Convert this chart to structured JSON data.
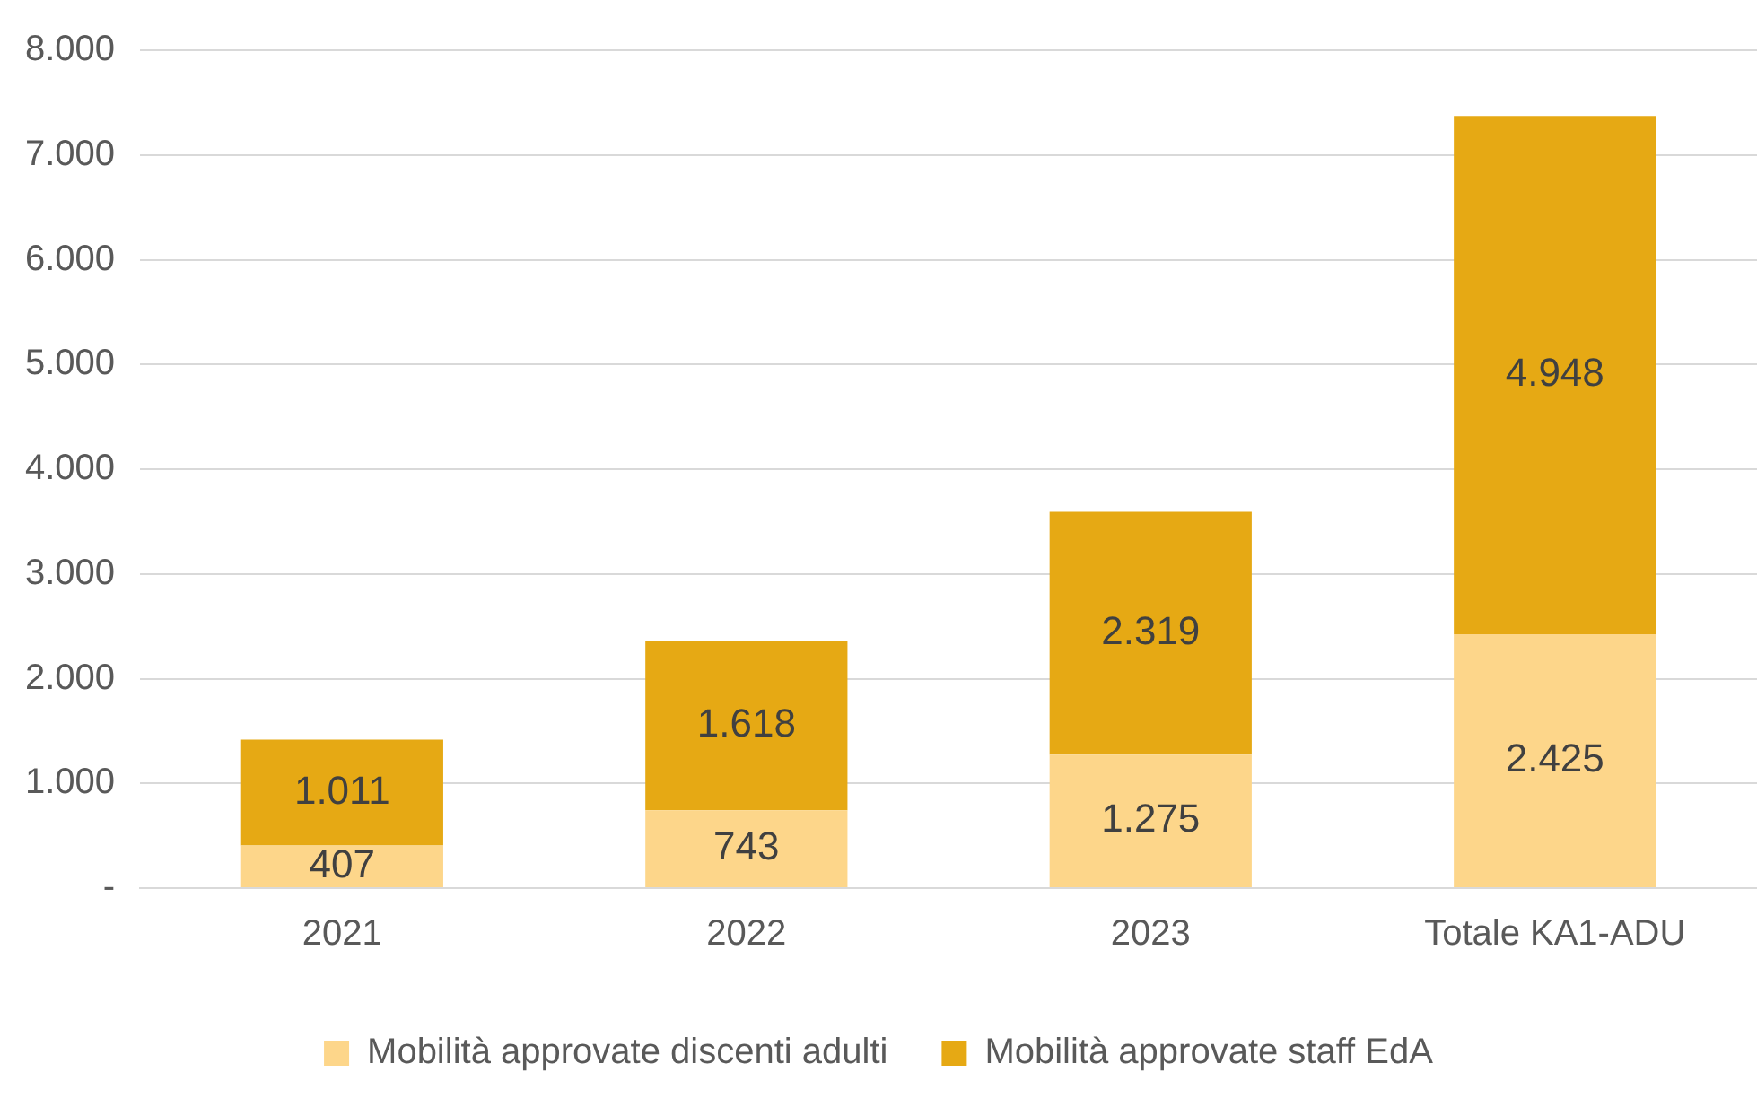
{
  "chart_data": {
    "type": "bar",
    "stacked": true,
    "categories": [
      "2021",
      "2022",
      "2023",
      "Totale KA1-ADU"
    ],
    "series": [
      {
        "name": "Mobilità approvate discenti adulti",
        "color": "#fdd68a",
        "values": [
          407,
          743,
          1275,
          2425
        ],
        "value_labels": [
          "407",
          "743",
          "1.275",
          "2.425"
        ]
      },
      {
        "name": "Mobilità approvate staff EdA",
        "color": "#e6a914",
        "values": [
          1011,
          1618,
          2319,
          4948
        ],
        "value_labels": [
          "1.011",
          "1.618",
          "2.319",
          "4.948"
        ]
      }
    ],
    "ylim": [
      0,
      8000
    ],
    "yticks": [
      {
        "value": 0,
        "label": "-"
      },
      {
        "value": 1000,
        "label": "1.000"
      },
      {
        "value": 2000,
        "label": "2.000"
      },
      {
        "value": 3000,
        "label": "3.000"
      },
      {
        "value": 4000,
        "label": "4.000"
      },
      {
        "value": 5000,
        "label": "5.000"
      },
      {
        "value": 6000,
        "label": "6.000"
      },
      {
        "value": 7000,
        "label": "7.000"
      },
      {
        "value": 8000,
        "label": "8.000"
      }
    ],
    "grid": "y",
    "legend": "bottom"
  }
}
